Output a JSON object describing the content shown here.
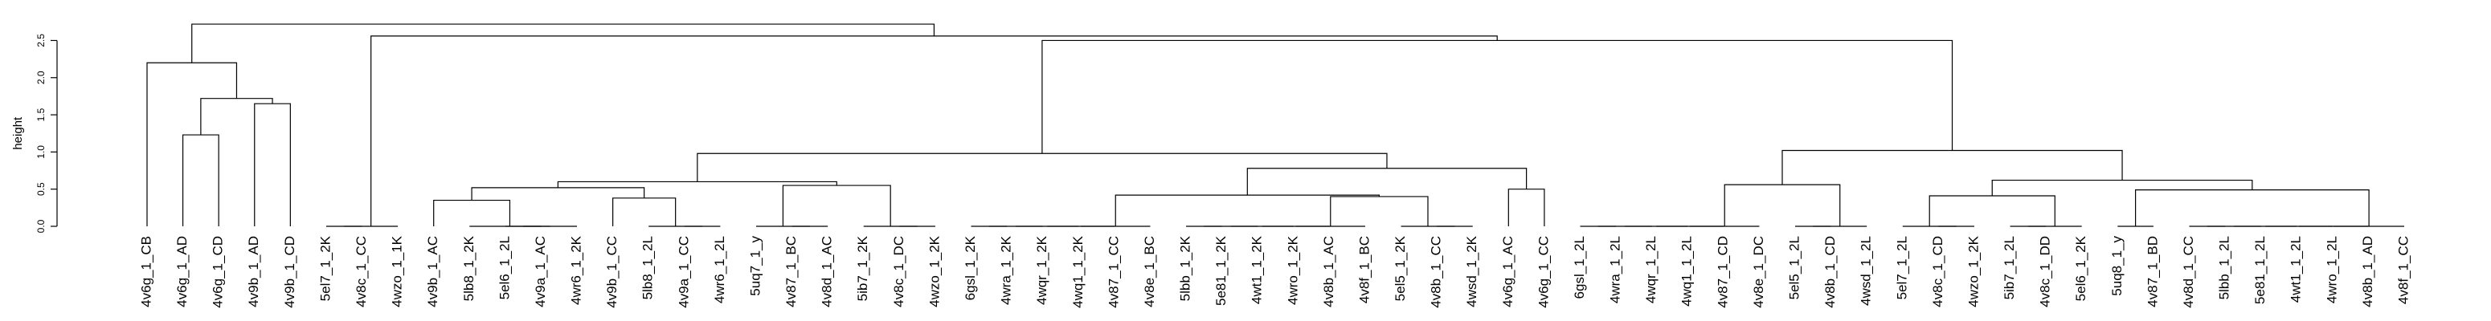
{
  "chart_data": {
    "type": "dendrogram",
    "title": "",
    "xlabel": "",
    "ylabel": "height",
    "ylim": [
      0,
      2.75
    ],
    "yticks": [
      "0.0",
      "0.5",
      "1.0",
      "1.5",
      "2.0",
      "2.5"
    ],
    "leaves": [
      "4v6g_1_CB",
      "4v6g_1_AD",
      "4v6g_1_CD",
      "4v9b_1_AD",
      "4v9b_1_CD",
      "5el7_1_2K",
      "4v8c_1_CC",
      "4wzo_1_1K",
      "4v9b_1_AC",
      "5lb8_1_2K",
      "5el6_1_2L",
      "4v9a_1_AC",
      "4wr6_1_2K",
      "4v9b_1_CC",
      "5lb8_1_2L",
      "4v9a_1_CC",
      "4wr6_1_2L",
      "5uq7_1_y",
      "4v87_1_BC",
      "4v8d_1_AC",
      "5ib7_1_2K",
      "4v8c_1_DC",
      "4wzo_1_2K",
      "6gsl_1_2K",
      "4wra_1_2K",
      "4wqr_1_2K",
      "4wq1_1_2K",
      "4v87_1_CC",
      "4v8e_1_BC",
      "5lbb_1_2K",
      "5e81_1_2K",
      "4wt1_1_2K",
      "4wro_1_2K",
      "4v8b_1_AC",
      "4v8f_1_BC",
      "5el5_1_2K",
      "4v8b_1_CC",
      "4wsd_1_2K",
      "4v6g_1_AC",
      "4v6g_1_CC",
      "6gsl_1_2L",
      "4wra_1_2L",
      "4wqr_1_2L",
      "4wq1_1_2L",
      "4v87_1_CD",
      "4v8e_1_DC",
      "5el5_1_2L",
      "4v8b_1_CD",
      "4wsd_1_2L",
      "5el7_1_2L",
      "4v8c_1_CD",
      "4wzo_1_2K",
      "5ib7_1_2L",
      "4v8c_1_DD",
      "5el6_1_2K",
      "5uq8_1_y",
      "4v87_1_BD",
      "4v8d_1_CC",
      "5lbb_1_2L",
      "5e81_1_2L",
      "4wt1_1_2L",
      "4wro_1_2L",
      "4v8b_1_AD",
      "4v8f_1_CC"
    ],
    "merges": [
      {
        "a": 1,
        "b": 2,
        "height": 1.23
      },
      {
        "a": 3,
        "b": 4,
        "height": 1.65
      },
      {
        "a": "m0",
        "b": "m1",
        "height": 1.72
      },
      {
        "a": 0,
        "b": "m2",
        "height": 2.2
      },
      {
        "a": 5,
        "b": 6,
        "height": 0.0
      },
      {
        "a": "m4",
        "b": 7,
        "height": 0.0
      },
      {
        "a": 10,
        "b": 11,
        "height": 0.0
      },
      {
        "a": "m6",
        "b": 12,
        "height": 0.0
      },
      {
        "a": 9,
        "b": "m7",
        "height": 0.0
      },
      {
        "a": 8,
        "b": "m8",
        "height": 0.35
      },
      {
        "a": 15,
        "b": 16,
        "height": 0.0
      },
      {
        "a": 14,
        "b": "m10",
        "height": 0.0
      },
      {
        "a": 13,
        "b": "m11",
        "height": 0.38
      },
      {
        "a": "m9",
        "b": "m12",
        "height": 0.52
      },
      {
        "a": 18,
        "b": 19,
        "height": 0.0
      },
      {
        "a": 17,
        "b": "m14",
        "height": 0.0
      },
      {
        "a": 21,
        "b": 22,
        "height": 0.0
      },
      {
        "a": 20,
        "b": "m16",
        "height": 0.0
      },
      {
        "a": "m15",
        "b": "m17",
        "height": 0.55
      },
      {
        "a": "m13",
        "b": "m18",
        "height": 0.6
      },
      {
        "a": 23,
        "b": 24,
        "height": 0.0
      },
      {
        "a": "m20",
        "b": 25,
        "height": 0.0
      },
      {
        "a": "m21",
        "b": 26,
        "height": 0.0
      },
      {
        "a": "m22",
        "b": 27,
        "height": 0.0
      },
      {
        "a": "m23",
        "b": 28,
        "height": 0.0
      },
      {
        "a": 29,
        "b": 30,
        "height": 0.0
      },
      {
        "a": "m25",
        "b": 31,
        "height": 0.0
      },
      {
        "a": "m26",
        "b": 32,
        "height": 0.0
      },
      {
        "a": "m27",
        "b": 33,
        "height": 0.0
      },
      {
        "a": "m28",
        "b": 34,
        "height": 0.0
      },
      {
        "a": 36,
        "b": 37,
        "height": 0.0
      },
      {
        "a": 35,
        "b": "m30",
        "height": 0.0
      },
      {
        "a": "m29",
        "b": "m31",
        "height": 0.4
      },
      {
        "a": "m24",
        "b": "m32",
        "height": 0.42
      },
      {
        "a": 38,
        "b": 39,
        "height": 0.5
      },
      {
        "a": "m33",
        "b": "m34",
        "height": 0.78
      },
      {
        "a": "m19",
        "b": "m35",
        "height": 0.98
      },
      {
        "a": 40,
        "b": 41,
        "height": 0.0
      },
      {
        "a": "m37",
        "b": 42,
        "height": 0.0
      },
      {
        "a": "m38",
        "b": 43,
        "height": 0.0
      },
      {
        "a": "m39",
        "b": 44,
        "height": 0.0
      },
      {
        "a": "m40",
        "b": 45,
        "height": 0.0
      },
      {
        "a": 46,
        "b": 47,
        "height": 0.0
      },
      {
        "a": "m42",
        "b": 48,
        "height": 0.0
      },
      {
        "a": "m41",
        "b": "m43",
        "height": 0.56
      },
      {
        "a": 50,
        "b": 51,
        "height": 0.0
      },
      {
        "a": 49,
        "b": "m45",
        "height": 0.0
      },
      {
        "a": 52,
        "b": 53,
        "height": 0.0
      },
      {
        "a": "m47",
        "b": 54,
        "height": 0.0
      },
      {
        "a": "m46",
        "b": "m48",
        "height": 0.41
      },
      {
        "a": 55,
        "b": 56,
        "height": 0.0
      },
      {
        "a": 57,
        "b": 58,
        "height": 0.0
      },
      {
        "a": "m51",
        "b": 59,
        "height": 0.0
      },
      {
        "a": "m52",
        "b": 60,
        "height": 0.0
      },
      {
        "a": "m53",
        "b": 61,
        "height": 0.0
      },
      {
        "a": "m54",
        "b": 62,
        "height": 0.0
      },
      {
        "a": "m55",
        "b": 63,
        "height": 0.0
      },
      {
        "a": "m50",
        "b": "m56",
        "height": 0.49
      },
      {
        "a": "m49",
        "b": "m57",
        "height": 0.62
      },
      {
        "a": "m44",
        "b": "m58",
        "height": 1.02
      },
      {
        "a": "m36",
        "b": "m59",
        "height": 2.5
      },
      {
        "a": "m5",
        "b": "m60",
        "height": 2.56
      },
      {
        "a": "m3",
        "b": "m61",
        "height": 2.72
      }
    ]
  }
}
